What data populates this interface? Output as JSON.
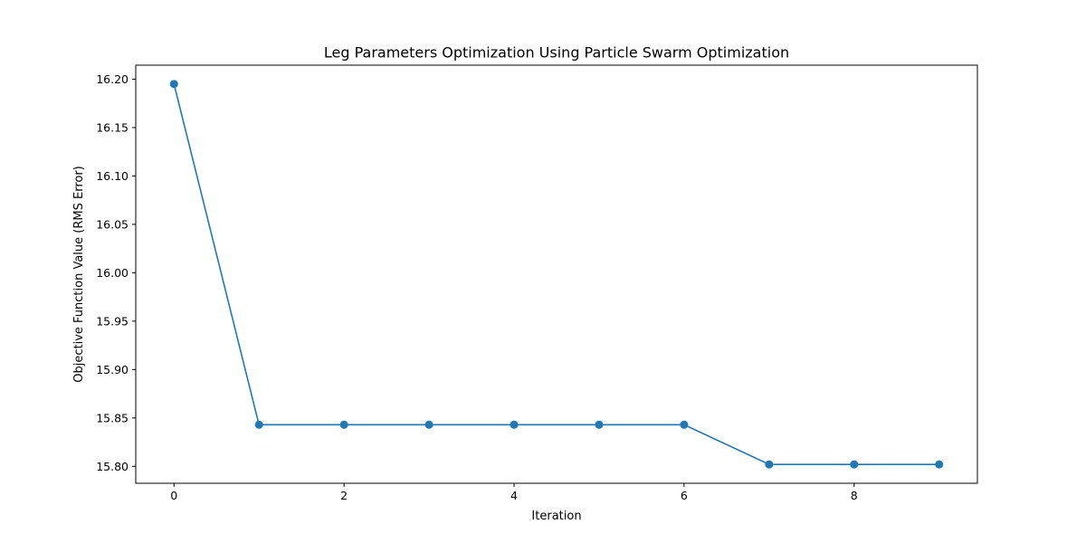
{
  "chart_data": {
    "type": "line",
    "title": "Leg Parameters Optimization Using Particle Swarm Optimization",
    "xlabel": "Iteration",
    "ylabel": "Objective Function Value (RMS Error)",
    "x": [
      0,
      1,
      2,
      3,
      4,
      5,
      6,
      7,
      8,
      9
    ],
    "series": [
      {
        "name": "Objective Function Value",
        "values": [
          16.195,
          15.843,
          15.843,
          15.843,
          15.843,
          15.843,
          15.843,
          15.802,
          15.802,
          15.802
        ],
        "color": "#1f77b4",
        "marker": "circle"
      }
    ],
    "xlim": [
      -0.45,
      9.45
    ],
    "ylim": [
      15.7825,
      16.2145
    ],
    "xticks": [
      0,
      2,
      4,
      6,
      8
    ],
    "xtick_labels": [
      "0",
      "2",
      "4",
      "6",
      "8"
    ],
    "yticks": [
      15.8,
      15.85,
      15.9,
      15.95,
      16.0,
      16.05,
      16.1,
      16.15,
      16.2
    ],
    "ytick_labels": [
      "15.80",
      "15.85",
      "15.90",
      "15.95",
      "16.00",
      "16.05",
      "16.10",
      "16.15",
      "16.20"
    ],
    "grid": false,
    "legend": "none"
  }
}
